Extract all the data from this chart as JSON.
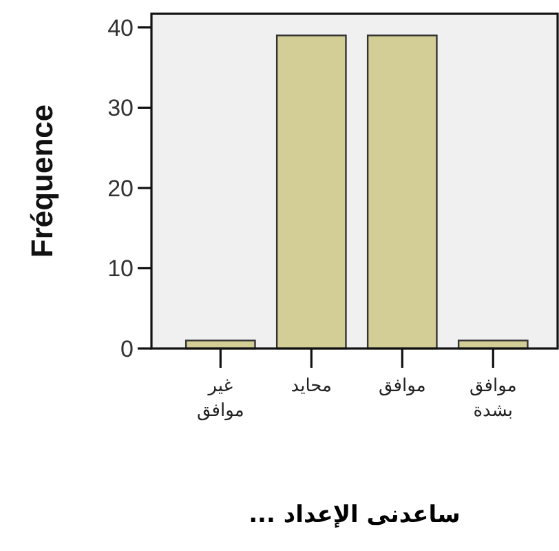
{
  "chart_data": {
    "type": "bar",
    "categories": [
      "غير موافق",
      "محايد",
      "موافق",
      "موافق بشدة"
    ],
    "values": [
      1,
      39,
      39,
      1
    ],
    "color": "#d3cd96",
    "xlabel": "ساعدنى الإعداد ...",
    "ylabel": "Fréquence",
    "ylim": [
      0,
      41.7
    ],
    "yticks": [
      0,
      10,
      20,
      30,
      40
    ]
  }
}
